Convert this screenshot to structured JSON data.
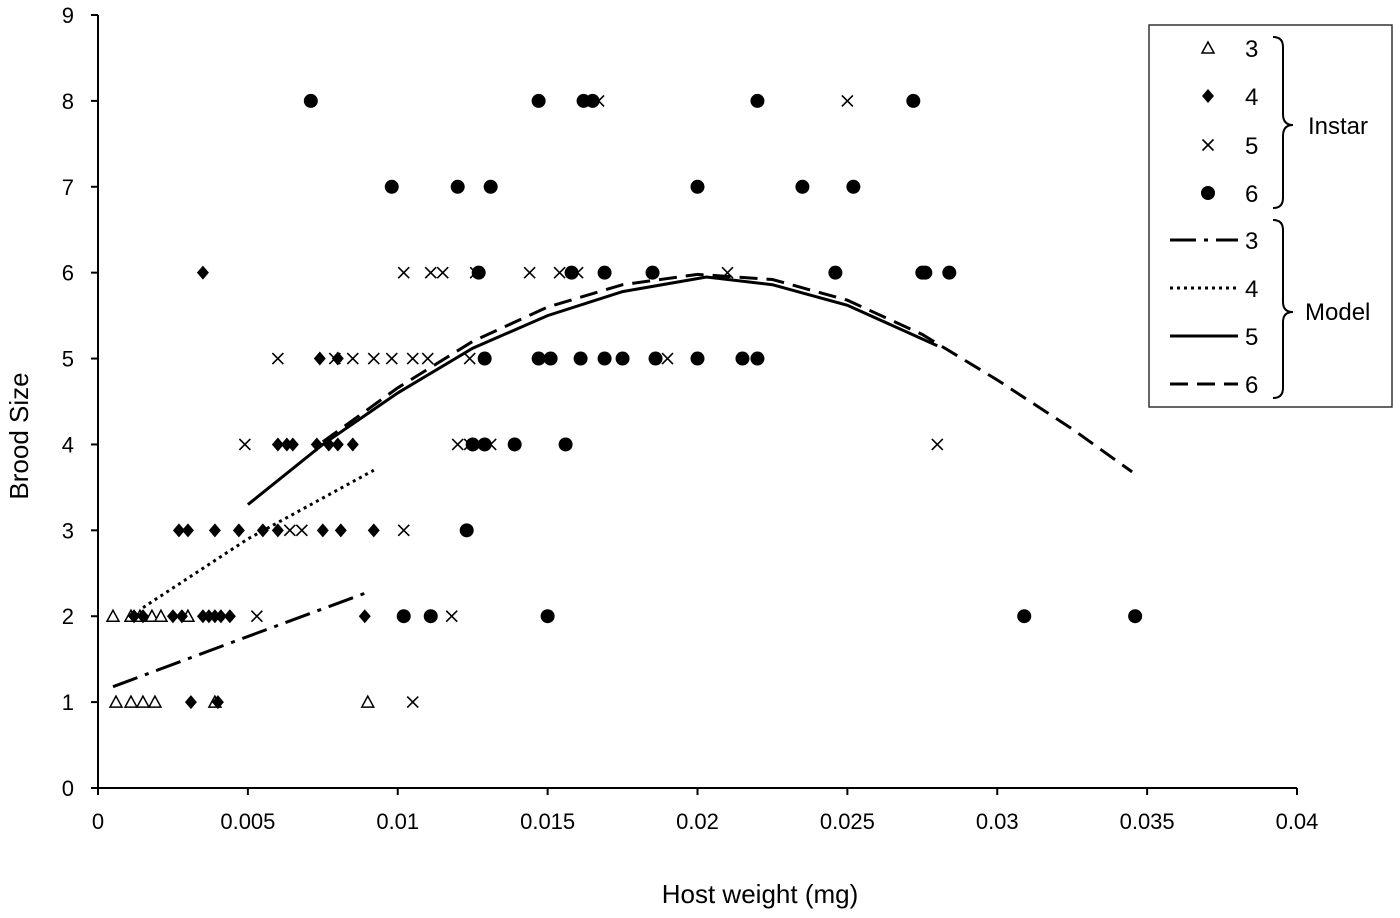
{
  "chart_data": {
    "type": "scatter",
    "xlabel": "Host weight (mg)",
    "ylabel": "Brood Size",
    "xlim": [
      0,
      0.04
    ],
    "ylim": [
      0,
      9
    ],
    "x_ticks": [
      "0",
      "0.005",
      "0.01",
      "0.015",
      "0.02",
      "0.025",
      "0.03",
      "0.035",
      "0.04"
    ],
    "y_ticks": [
      "0",
      "1",
      "2",
      "3",
      "4",
      "5",
      "6",
      "7",
      "8",
      "9"
    ],
    "grid": false,
    "legend_position": "top-right",
    "legend": {
      "group_instar": "Instar",
      "group_model": "Model"
    },
    "series": [
      {
        "name": "3",
        "group": "Instar",
        "marker": "triangle-open",
        "points": [
          [
            0.0005,
            2
          ],
          [
            0.0011,
            2
          ],
          [
            0.0014,
            2
          ],
          [
            0.0018,
            2
          ],
          [
            0.0021,
            2
          ],
          [
            0.003,
            2
          ],
          [
            0.0006,
            1
          ],
          [
            0.0011,
            1
          ],
          [
            0.0015,
            1
          ],
          [
            0.0019,
            1
          ],
          [
            0.0039,
            1
          ],
          [
            0.009,
            1
          ]
        ]
      },
      {
        "name": "4",
        "group": "Instar",
        "marker": "diamond",
        "points": [
          [
            0.0035,
            6
          ],
          [
            0.0074,
            5
          ],
          [
            0.008,
            5
          ],
          [
            0.006,
            4
          ],
          [
            0.0063,
            4
          ],
          [
            0.0065,
            4
          ],
          [
            0.0073,
            4
          ],
          [
            0.0077,
            4
          ],
          [
            0.008,
            4
          ],
          [
            0.0085,
            4
          ],
          [
            0.0027,
            3
          ],
          [
            0.003,
            3
          ],
          [
            0.0039,
            3
          ],
          [
            0.0047,
            3
          ],
          [
            0.0055,
            3
          ],
          [
            0.006,
            3
          ],
          [
            0.0075,
            3
          ],
          [
            0.0081,
            3
          ],
          [
            0.0092,
            3
          ],
          [
            0.0012,
            2
          ],
          [
            0.0015,
            2
          ],
          [
            0.0025,
            2
          ],
          [
            0.0028,
            2
          ],
          [
            0.0035,
            2
          ],
          [
            0.0037,
            2
          ],
          [
            0.0039,
            2
          ],
          [
            0.0041,
            2
          ],
          [
            0.0044,
            2
          ],
          [
            0.0089,
            2
          ],
          [
            0.0031,
            1
          ],
          [
            0.004,
            1
          ]
        ]
      },
      {
        "name": "5",
        "group": "Instar",
        "marker": "x",
        "points": [
          [
            0.025,
            8
          ],
          [
            0.0167,
            8
          ],
          [
            0.0102,
            6
          ],
          [
            0.0111,
            6
          ],
          [
            0.0115,
            6
          ],
          [
            0.0126,
            6
          ],
          [
            0.0144,
            6
          ],
          [
            0.0154,
            6
          ],
          [
            0.016,
            6
          ],
          [
            0.021,
            6
          ],
          [
            0.006,
            5
          ],
          [
            0.0079,
            5
          ],
          [
            0.0085,
            5
          ],
          [
            0.0092,
            5
          ],
          [
            0.0098,
            5
          ],
          [
            0.0105,
            5
          ],
          [
            0.011,
            5
          ],
          [
            0.0124,
            5
          ],
          [
            0.019,
            5
          ],
          [
            0.0049,
            4
          ],
          [
            0.012,
            4
          ],
          [
            0.0124,
            4
          ],
          [
            0.0131,
            4
          ],
          [
            0.028,
            4
          ],
          [
            0.0064,
            3
          ],
          [
            0.0068,
            3
          ],
          [
            0.0102,
            3
          ],
          [
            0.0053,
            2
          ],
          [
            0.0118,
            2
          ],
          [
            0.0105,
            1
          ]
        ]
      },
      {
        "name": "6",
        "group": "Instar",
        "marker": "circle",
        "points": [
          [
            0.0071,
            8
          ],
          [
            0.0147,
            8
          ],
          [
            0.0162,
            8
          ],
          [
            0.0165,
            8
          ],
          [
            0.022,
            8
          ],
          [
            0.0272,
            8
          ],
          [
            0.0098,
            7
          ],
          [
            0.012,
            7
          ],
          [
            0.0131,
            7
          ],
          [
            0.02,
            7
          ],
          [
            0.0235,
            7
          ],
          [
            0.0252,
            7
          ],
          [
            0.0127,
            6
          ],
          [
            0.0158,
            6
          ],
          [
            0.0169,
            6
          ],
          [
            0.0185,
            6
          ],
          [
            0.0246,
            6
          ],
          [
            0.0275,
            6
          ],
          [
            0.0276,
            6
          ],
          [
            0.0284,
            6
          ],
          [
            0.0129,
            5
          ],
          [
            0.0147,
            5
          ],
          [
            0.0151,
            5
          ],
          [
            0.0161,
            5
          ],
          [
            0.0169,
            5
          ],
          [
            0.0175,
            5
          ],
          [
            0.0186,
            5
          ],
          [
            0.02,
            5
          ],
          [
            0.0215,
            5
          ],
          [
            0.022,
            5
          ],
          [
            0.0125,
            4
          ],
          [
            0.0129,
            4
          ],
          [
            0.0139,
            4
          ],
          [
            0.0156,
            4
          ],
          [
            0.0123,
            3
          ],
          [
            0.0102,
            2
          ],
          [
            0.0111,
            2
          ],
          [
            0.015,
            2
          ],
          [
            0.0309,
            2
          ],
          [
            0.0346,
            2
          ]
        ]
      },
      {
        "name": "3",
        "group": "Model",
        "line_style": "dash-dot",
        "points": [
          [
            0.0005,
            1.18
          ],
          [
            0.0045,
            1.7
          ],
          [
            0.009,
            2.28
          ]
        ]
      },
      {
        "name": "4",
        "group": "Model",
        "line_style": "dotted",
        "points": [
          [
            0.0015,
            2.1
          ],
          [
            0.005,
            2.9
          ],
          [
            0.0092,
            3.7
          ]
        ]
      },
      {
        "name": "5",
        "group": "Model",
        "line_style": "solid",
        "points": [
          [
            0.005,
            3.3
          ],
          [
            0.0075,
            4.0
          ],
          [
            0.01,
            4.6
          ],
          [
            0.0125,
            5.12
          ],
          [
            0.015,
            5.5
          ],
          [
            0.0175,
            5.78
          ],
          [
            0.0203,
            5.95
          ],
          [
            0.0225,
            5.86
          ],
          [
            0.025,
            5.62
          ],
          [
            0.028,
            5.15
          ]
        ]
      },
      {
        "name": "6",
        "group": "Model",
        "line_style": "dashed",
        "points": [
          [
            0.0075,
            4.03
          ],
          [
            0.01,
            4.66
          ],
          [
            0.0125,
            5.2
          ],
          [
            0.015,
            5.6
          ],
          [
            0.0175,
            5.86
          ],
          [
            0.02,
            5.98
          ],
          [
            0.0225,
            5.92
          ],
          [
            0.025,
            5.68
          ],
          [
            0.0275,
            5.28
          ],
          [
            0.03,
            4.75
          ],
          [
            0.0325,
            4.18
          ],
          [
            0.0345,
            3.68
          ]
        ]
      }
    ]
  }
}
